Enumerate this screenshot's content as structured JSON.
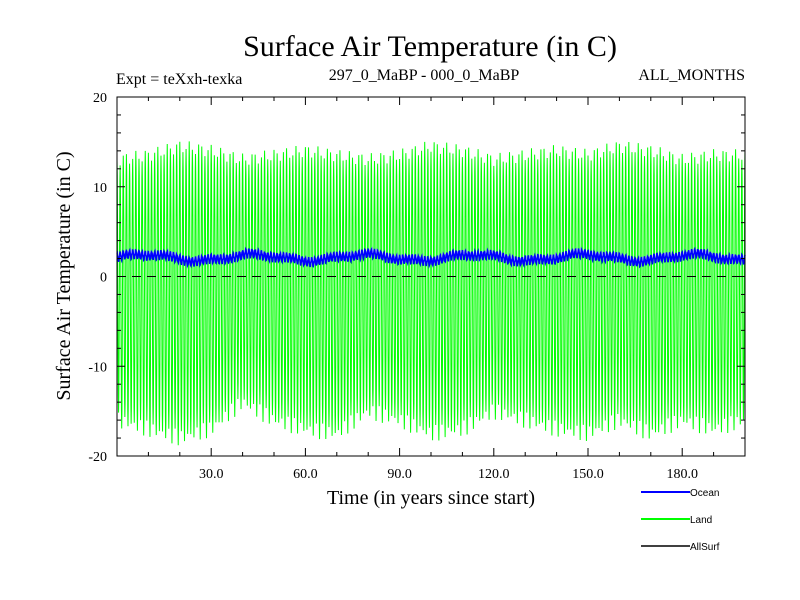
{
  "chart_data": {
    "type": "line",
    "title": "Surface Air Temperature (in C)",
    "subtitle_left": "Expt = teXxh-texka",
    "subtitle_center": "297_0_MaBP - 000_0_MaBP",
    "subtitle_right": "ALL_MONTHS",
    "xlabel": "Time (in years since start)",
    "ylabel": "Surface Air Temperature (in C)",
    "xlim": [
      0,
      200
    ],
    "ylim": [
      -20,
      20
    ],
    "xticks": [
      30,
      60,
      90,
      120,
      150,
      180
    ],
    "xtick_labels": [
      "30.0",
      "60.0",
      "90.0",
      "120.0",
      "150.0",
      "180.0"
    ],
    "yticks": [
      -20,
      -10,
      0,
      10,
      20
    ],
    "ytick_labels": [
      "-20",
      "-10",
      "0",
      "10",
      "20"
    ],
    "reference_line": {
      "y": 0,
      "style": "dashed"
    },
    "series": [
      {
        "name": "Land",
        "color": "#00ff00",
        "description": "monthly seasonal cycle",
        "max_envelope_x": [
          0,
          10,
          20,
          30,
          40,
          50,
          60,
          70,
          80,
          90,
          100,
          110,
          120,
          130,
          140,
          150,
          160,
          170,
          180,
          190,
          200
        ],
        "max_envelope_y": [
          13,
          13.5,
          14.5,
          14,
          13,
          13.5,
          14,
          13.5,
          13,
          13.5,
          14.5,
          14,
          13,
          13.5,
          14,
          13.5,
          14.5,
          14,
          13,
          13.5,
          13.5
        ],
        "min_envelope_x": [
          0,
          10,
          20,
          30,
          40,
          50,
          60,
          70,
          80,
          90,
          100,
          110,
          120,
          130,
          140,
          150,
          160,
          170,
          180,
          190,
          200
        ],
        "min_envelope_y": [
          -16,
          -17,
          -18,
          -17,
          -14,
          -16,
          -17,
          -17.5,
          -15,
          -16,
          -17.5,
          -17,
          -15,
          -16,
          -17,
          -17.5,
          -16,
          -17.5,
          -16,
          -17,
          -16
        ]
      },
      {
        "name": "Ocean",
        "color": "#0000ff",
        "description": "monthly values",
        "mean": 2.1,
        "amplitude": 0.45
      },
      {
        "name": "AllSurf",
        "color": "#000000",
        "description": "legend only, not visible in plot"
      }
    ],
    "legend": [
      "Ocean",
      "Land",
      "AllSurf"
    ],
    "legend_position": "bottom-right"
  },
  "colors": {
    "land": "#00ff00",
    "ocean": "#0000ff",
    "allsurf": "#000000"
  }
}
